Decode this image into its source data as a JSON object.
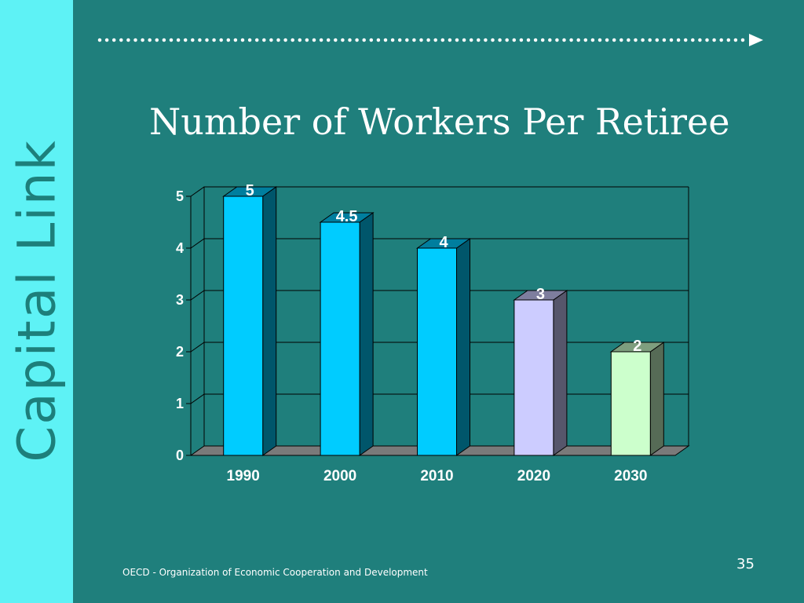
{
  "slide": {
    "side_title": "Capital Link",
    "title": "Number of Workers Per Retiree",
    "footer": "OECD - Organization of Economic Cooperation and Development",
    "page_number": "35"
  },
  "colors": {
    "background": "#1f7f7c",
    "sidebar": "#5ef2f5",
    "sidebar_text": "#1d7f7b",
    "bar_cyan": "#00ccff",
    "bar_lavender": "#ccccff",
    "bar_mint": "#ccffcc",
    "floor": "#7a7a7a"
  },
  "chart_data": {
    "type": "bar",
    "style": "3d-column",
    "title": "Number of Workers Per Retiree",
    "categories": [
      "1990",
      "2000",
      "2010",
      "2020",
      "2030"
    ],
    "values": [
      5,
      4.5,
      4,
      3,
      2
    ],
    "data_labels": [
      "5",
      "4.5",
      "4",
      "3",
      "2"
    ],
    "bar_colors": [
      "#00ccff",
      "#00ccff",
      "#00ccff",
      "#ccccff",
      "#ccffcc"
    ],
    "ylim": [
      0,
      5
    ],
    "yticks": [
      0,
      1,
      2,
      3,
      4,
      5
    ],
    "grid": true,
    "legend": "none",
    "xlabel": "",
    "ylabel": ""
  }
}
